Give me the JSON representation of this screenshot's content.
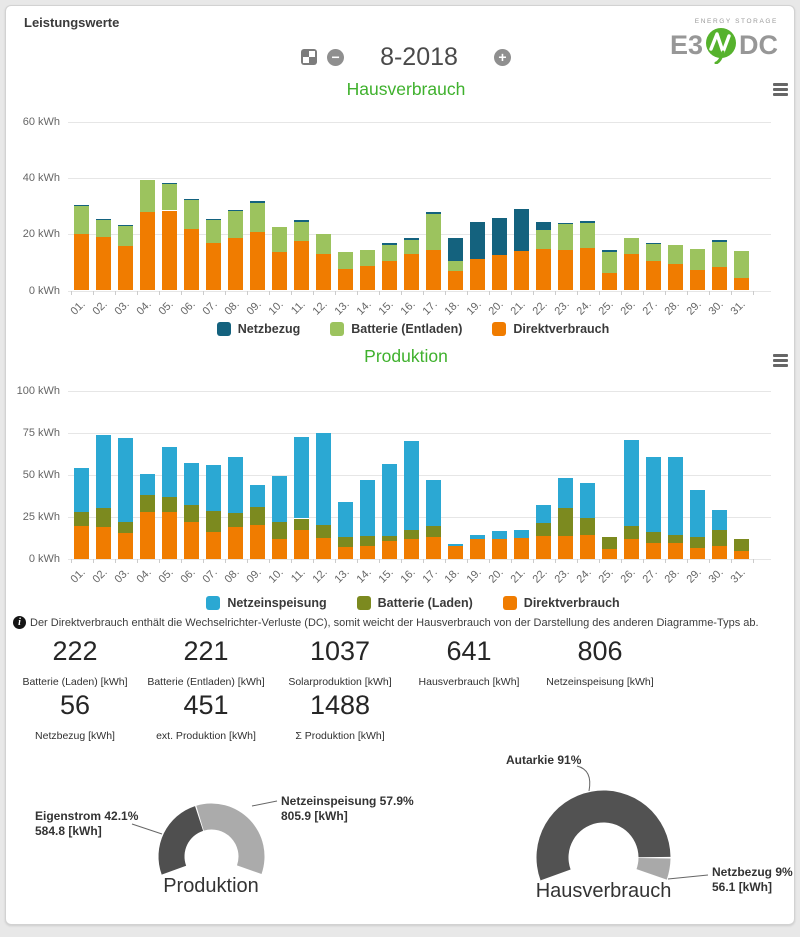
{
  "header": {
    "title": "Leistungswerte",
    "logo_top": "ENERGY STORAGE",
    "logo_left": "E3",
    "logo_right": "DC"
  },
  "nav": {
    "period": "8-2018",
    "minus": "−",
    "plus": "+"
  },
  "info": {
    "icon": "i",
    "text": "Der Direktverbrauch enthält die Wechselrichter-Verluste (DC), somit weicht der Hausverbrauch von der Darstellung des anderen Diagramme-Typs ab."
  },
  "stats": [
    {
      "value": "222",
      "label": "Batterie (Laden) [kWh]"
    },
    {
      "value": "221",
      "label": "Batterie (Entladen) [kWh]"
    },
    {
      "value": "1037",
      "label": "Solarproduktion [kWh]"
    },
    {
      "value": "641",
      "label": "Hausverbrauch [kWh]"
    },
    {
      "value": "806",
      "label": "Netzeinspeisung [kWh]"
    },
    {
      "value": "56",
      "label": "Netzbezug [kWh]"
    },
    {
      "value": "451",
      "label": "ext. Produktion [kWh]"
    },
    {
      "value": "1488",
      "label": "Σ Produktion [kWh]"
    }
  ],
  "chart_data": [
    {
      "type": "bar",
      "stacked": true,
      "title": "Hausverbrauch",
      "unit": "kWh",
      "ylim": [
        0,
        60
      ],
      "yticks": [
        0,
        20,
        40,
        60
      ],
      "grid": true,
      "legend_position": "bottom",
      "categories": [
        "01.",
        "02.",
        "03.",
        "04.",
        "05.",
        "06.",
        "07.",
        "08.",
        "09.",
        "10.",
        "11.",
        "12.",
        "13.",
        "14.",
        "15.",
        "16.",
        "17.",
        "18.",
        "19.",
        "20.",
        "21.",
        "22.",
        "23.",
        "24.",
        "25.",
        "26.",
        "27.",
        "28.",
        "29.",
        "30.",
        "31."
      ],
      "series": [
        {
          "name": "Netzbezug",
          "color": "#14627E",
          "values": [
            0.6,
            0.4,
            0.3,
            0,
            0.5,
            0.5,
            0.5,
            0.5,
            0.5,
            0,
            0.5,
            0,
            0,
            0,
            0.4,
            0.4,
            0.5,
            8.3,
            12.9,
            13.3,
            14.8,
            2.8,
            0.6,
            0.3,
            0.3,
            0,
            0.3,
            0,
            0,
            0.4,
            0
          ]
        },
        {
          "name": "Batterie (Entladen)",
          "color": "#9CC35E",
          "values": [
            9.7,
            6.0,
            7.2,
            11.1,
            9.3,
            10.2,
            7.9,
            9.3,
            10.2,
            8.6,
            6.9,
            7.1,
            6.1,
            5.7,
            5.9,
            5.2,
            12.8,
            3.5,
            0,
            0,
            0,
            6.8,
            9.1,
            9.1,
            7.8,
            6.0,
            6.2,
            6.5,
            7.2,
            9.3,
            9.4
          ]
        },
        {
          "name": "Direktverbrauch",
          "color": "#F07C00",
          "values": [
            20.2,
            19.1,
            15.9,
            28.0,
            28.4,
            21.8,
            17.0,
            18.8,
            20.9,
            13.8,
            17.6,
            13.1,
            7.7,
            8.7,
            10.5,
            13.0,
            14.4,
            6.9,
            11.3,
            12.5,
            14.0,
            14.6,
            14.4,
            15.1,
            6.2,
            12.8,
            10.5,
            9.5,
            7.4,
            8.2,
            4.5
          ]
        }
      ]
    },
    {
      "type": "bar",
      "stacked": true,
      "title": "Produktion",
      "unit": "kWh",
      "ylim": [
        0,
        100
      ],
      "yticks": [
        0,
        25,
        50,
        75,
        100
      ],
      "grid": true,
      "legend_position": "bottom",
      "categories": [
        "01.",
        "02.",
        "03.",
        "04.",
        "05.",
        "06.",
        "07.",
        "08.",
        "09.",
        "10.",
        "11.",
        "12.",
        "13.",
        "14.",
        "15.",
        "16.",
        "17.",
        "18.",
        "19.",
        "20.",
        "21.",
        "22.",
        "23.",
        "24.",
        "25.",
        "26.",
        "27.",
        "28.",
        "29.",
        "30.",
        "31."
      ],
      "series": [
        {
          "name": "Netzeinspeisung",
          "color": "#2BA8D3",
          "values": [
            25.9,
            43.9,
            50.1,
            12.3,
            29.5,
            24.9,
            27.3,
            33.9,
            13.3,
            27.7,
            48.4,
            54.6,
            20.7,
            33.6,
            42.7,
            53.5,
            27.2,
            1.0,
            2.8,
            4.7,
            4.5,
            10.8,
            18.2,
            20.6,
            0,
            51.6,
            44.7,
            46.5,
            27.7,
            11.5,
            0
          ]
        },
        {
          "name": "Batterie (Laden)",
          "color": "#7C8A1F",
          "values": [
            8.7,
            11.1,
            6.4,
            10.1,
            8.9,
            9.9,
            12.5,
            8.3,
            10.5,
            9.6,
            6.9,
            7.9,
            6.0,
            5.5,
            3.3,
            5.1,
            6.5,
            0,
            0,
            0,
            0,
            7.5,
            16.5,
            10.0,
            7.1,
            7.5,
            6.3,
            5.2,
            6.8,
            9.9,
            7.5
          ]
        },
        {
          "name": "Direktverbrauch",
          "color": "#F07C00",
          "values": [
            19.4,
            19.0,
            15.4,
            28.1,
            28.1,
            22.2,
            16.2,
            18.8,
            20.2,
            12.2,
            17.2,
            12.5,
            7.3,
            7.9,
            10.5,
            11.9,
            13.3,
            8.0,
            11.7,
            11.9,
            12.5,
            13.7,
            13.8,
            14.4,
            6.2,
            11.9,
            9.5,
            9.3,
            6.5,
            7.6,
            4.6
          ]
        }
      ]
    },
    {
      "type": "pie",
      "title": "Produktion",
      "gauge": true,
      "segments": [
        {
          "name": "Eigenstrom",
          "pct": 42.1,
          "label": "Eigenstrom 42.1%",
          "value_label": "584.8 [kWh]",
          "color": "#4F4F4F"
        },
        {
          "name": "Netzeinspeisung",
          "pct": 57.9,
          "label": "Netzeinspeisung 57.9%",
          "value_label": "805.9 [kWh]",
          "color": "#ABABAB"
        }
      ]
    },
    {
      "type": "pie",
      "title": "Hausverbrauch",
      "gauge": true,
      "segments": [
        {
          "name": "Autarkie",
          "pct": 91,
          "label": "Autarkie 91%",
          "value_label": "",
          "color": "#525252"
        },
        {
          "name": "Netzbezug",
          "pct": 9,
          "label": "Netzbezug 9%",
          "value_label": "56.1 [kWh]",
          "color": "#A9A9A9"
        }
      ]
    }
  ]
}
